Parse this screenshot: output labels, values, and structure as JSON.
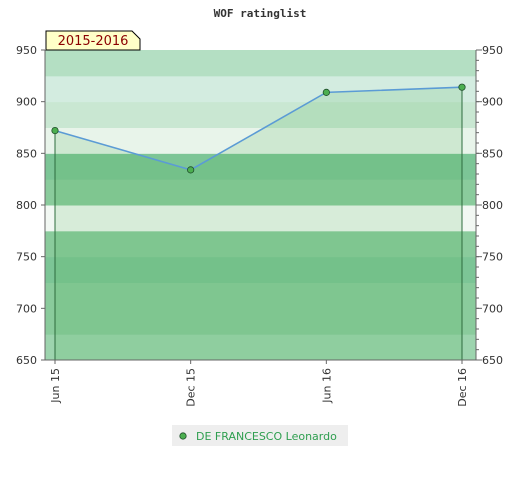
{
  "chart_data": {
    "type": "line",
    "title": "WOF ratinglist",
    "season_label": "2015-2016",
    "categories": [
      "Jun 15",
      "Dec 15",
      "Jun 16",
      "Dec 16"
    ],
    "series": [
      {
        "name": "DE FRANCESCO Leonardo",
        "values": [
          872,
          834,
          909,
          914
        ]
      }
    ],
    "ylim": [
      650,
      950
    ],
    "yticks": [
      "650",
      "700",
      "750",
      "800",
      "850",
      "900",
      "950"
    ],
    "xlabel": "",
    "ylabel": "",
    "grid": true,
    "legend_position": "bottom",
    "colors": {
      "line": "#5b9bd5",
      "marker": "#4caf50",
      "band_green": "#7cc596",
      "season_bg": "#ffffc8"
    }
  }
}
